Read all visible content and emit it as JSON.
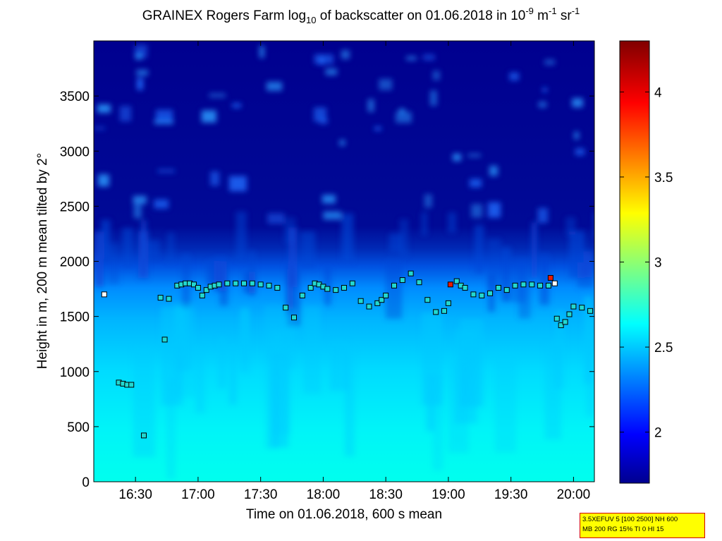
{
  "title": {
    "pre": "GRAINEX Rogers Farm log",
    "sub": "10",
    "mid": " of backscatter on 01.06.2018 in 10",
    "sup1": "-9",
    "unit1": " m",
    "sup2": "-1",
    "unit2": " sr",
    "sup3": "-1"
  },
  "info_box": {
    "line1": "3.5XEFUV 5 [100 2500] NH 600",
    "line2": "MB 200 RG 15% TI 0 HI 15"
  },
  "colors": {
    "low": "#00008f",
    "mid": "#00ffff",
    "high": "#800000"
  },
  "chart_data": {
    "type": "heatmap",
    "xlabel": "Time on 01.06.2018, 600 s mean",
    "ylabel": "Height in m, 200 m mean tilted by 2°",
    "xlim": [
      "16:10",
      "20:10"
    ],
    "ylim": [
      0,
      4000
    ],
    "x_ticks": [
      "16:30",
      "17:00",
      "17:30",
      "18:00",
      "18:30",
      "19:00",
      "19:30",
      "20:00"
    ],
    "y_ticks": [
      0,
      500,
      1000,
      1500,
      2000,
      2500,
      3000,
      3500
    ],
    "colorbar": {
      "range": [
        1.7,
        4.3
      ],
      "ticks": [
        "2",
        "2.5",
        "3",
        "3.5",
        "4"
      ]
    },
    "heatmap_summary": [
      {
        "height_m": 0,
        "log10_backscatter": 2.8
      },
      {
        "height_m": 500,
        "log10_backscatter": 2.7
      },
      {
        "height_m": 1000,
        "log10_backscatter": 2.6
      },
      {
        "height_m": 1500,
        "log10_backscatter": 2.4
      },
      {
        "height_m": 1800,
        "log10_backscatter": 2.2
      },
      {
        "height_m": 2100,
        "log10_backscatter": 1.8
      },
      {
        "height_m": 4000,
        "log10_backscatter": 1.75
      }
    ],
    "boundary_layer_heights": {
      "times": [
        "16:22",
        "16:24",
        "16:26",
        "16:28",
        "16:34",
        "16:42",
        "16:44",
        "16:46",
        "16:50",
        "16:52",
        "16:54",
        "16:56",
        "16:58",
        "17:00",
        "17:02",
        "17:04",
        "17:06",
        "17:08",
        "17:10",
        "17:14",
        "17:18",
        "17:22",
        "17:26",
        "17:30",
        "17:34",
        "17:38",
        "17:42",
        "17:46",
        "17:50",
        "17:54",
        "17:56",
        "17:58",
        "18:00",
        "18:02",
        "18:06",
        "18:10",
        "18:14",
        "18:18",
        "18:22",
        "18:26",
        "18:28",
        "18:30",
        "18:34",
        "18:38",
        "18:42",
        "18:46",
        "18:50",
        "18:54",
        "18:58",
        "19:00",
        "19:04",
        "19:06",
        "19:08",
        "19:12",
        "19:16",
        "19:20",
        "19:24",
        "19:28",
        "19:32",
        "19:36",
        "19:40",
        "19:44",
        "19:48",
        "19:52",
        "19:54",
        "19:56",
        "19:58",
        "20:00",
        "20:04",
        "20:08"
      ],
      "heights_m": [
        900,
        890,
        880,
        880,
        420,
        1670,
        1290,
        1660,
        1780,
        1790,
        1800,
        1800,
        1790,
        1760,
        1690,
        1740,
        1770,
        1780,
        1790,
        1800,
        1800,
        1800,
        1800,
        1790,
        1780,
        1760,
        1580,
        1490,
        1690,
        1760,
        1800,
        1790,
        1770,
        1750,
        1740,
        1760,
        1800,
        1640,
        1590,
        1620,
        1650,
        1690,
        1780,
        1830,
        1890,
        1810,
        1650,
        1540,
        1550,
        1620,
        1820,
        1780,
        1760,
        1700,
        1690,
        1710,
        1760,
        1740,
        1780,
        1790,
        1790,
        1780,
        1780,
        1480,
        1420,
        1450,
        1520,
        1590,
        1580,
        1550
      ]
    },
    "outliers": [
      {
        "time": "16:15",
        "height_m": 1700,
        "value": "low"
      },
      {
        "time": "19:01",
        "height_m": 1790,
        "value": "high"
      },
      {
        "time": "19:49",
        "height_m": 1850,
        "value": "high"
      },
      {
        "time": "19:51",
        "height_m": 1800,
        "value": "low"
      }
    ]
  }
}
